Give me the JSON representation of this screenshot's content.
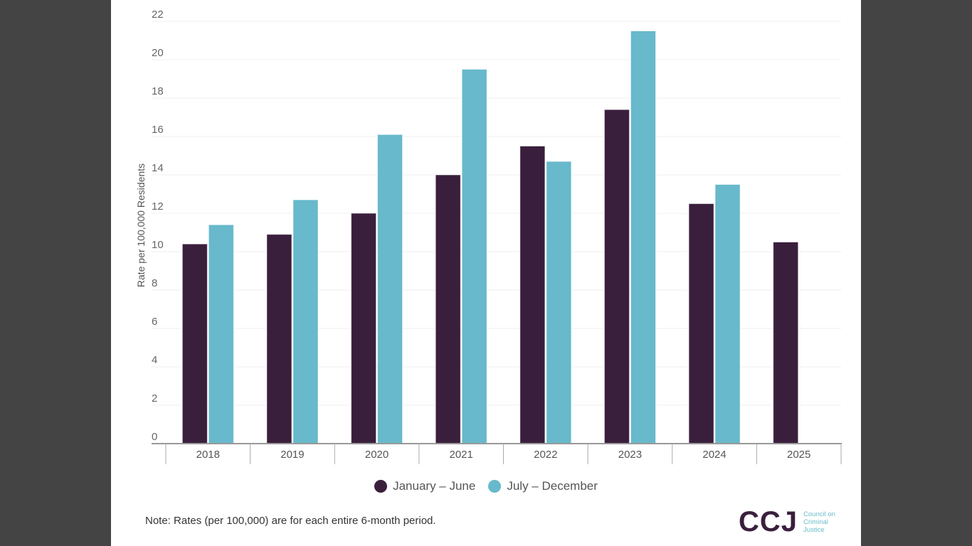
{
  "chart_data": {
    "type": "bar",
    "title": "",
    "xlabel": "",
    "ylabel": "Rate per 100,000 Residents",
    "ylim": [
      0,
      22
    ],
    "yticks": [
      0,
      2,
      4,
      6,
      8,
      10,
      12,
      14,
      16,
      18,
      20,
      22
    ],
    "grid": true,
    "legend_position": "bottom-center",
    "categories": [
      "2018",
      "2019",
      "2020",
      "2021",
      "2022",
      "2023",
      "2024",
      "2025"
    ],
    "series": [
      {
        "name": "January – June",
        "color": "#3a1f3d",
        "values": [
          10.4,
          10.9,
          12.0,
          14.0,
          15.5,
          17.4,
          12.5,
          10.5
        ]
      },
      {
        "name": "July – December",
        "color": "#67b9cb",
        "values": [
          11.4,
          12.7,
          16.1,
          19.5,
          14.7,
          21.5,
          13.5,
          null
        ]
      }
    ]
  },
  "note": "Note: Rates (per 100,000) are for each entire 6-month period.",
  "logo": {
    "mark": "CCJ",
    "line1": "Council on",
    "line2": "Criminal",
    "line3": "Justice"
  }
}
